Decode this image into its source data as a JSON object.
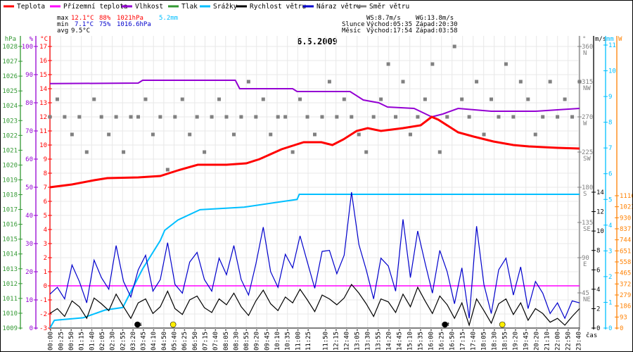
{
  "legend": [
    {
      "label": "Teplota",
      "color": "#ff0000"
    },
    {
      "label": "Přízemní teplota",
      "color": "#ff00ff"
    },
    {
      "label": "Vlhkost",
      "color": "#9400d3"
    },
    {
      "label": "Tlak",
      "color": "#339933"
    },
    {
      "label": "Srážky",
      "color": "#00bfff"
    },
    {
      "label": "Rychlost větru",
      "color": "#000000"
    },
    {
      "label": "Náraz větru",
      "color": "#0000cc"
    },
    {
      "label": "Směr větru",
      "color": "#808080"
    }
  ],
  "stats": {
    "max": {
      "label": "max",
      "temp": "12.1°C",
      "hum": "88%",
      "press": "1021hPa",
      "rain": "5.2mm"
    },
    "min": {
      "label": "min",
      "temp": "7.1°C",
      "hum": "75%",
      "press": "1016.6hPa"
    },
    "avg": {
      "label": "avg",
      "temp": "9.5°C"
    }
  },
  "wind_info": {
    "ws": "WS:8.7m/s",
    "wg": "WG:13.8m/s"
  },
  "sun": {
    "label": "Slunce",
    "rise": "Východ:05:35",
    "set": "Západ:20:30"
  },
  "moon": {
    "label": "Měsíc",
    "rise": "Východ:17:54",
    "set": "Západ:03:58"
  },
  "chart_data": {
    "type": "line",
    "title": "6.5.2009",
    "xlabel": "čas",
    "x_range_hours": [
      0,
      24
    ],
    "x_tick_labels": [
      "00:00",
      "00:25",
      "00:50",
      "01:15",
      "01:40",
      "02:05",
      "02:30",
      "02:55",
      "03:20",
      "03:45",
      "04:10",
      "04:50",
      "05:40",
      "06:25",
      "06:50",
      "07:15",
      "07:40",
      "08:05",
      "08:30",
      "08:55",
      "09:20",
      "09:45",
      "10:10",
      "10:35",
      "11:00",
      "11:25",
      "11:50",
      "12:15",
      "12:40",
      "13:05",
      "13:30",
      "13:55",
      "14:20",
      "14:45",
      "15:10",
      "15:35",
      "16:00",
      "16:25",
      "16:50",
      "17:15",
      "17:40",
      "18:05",
      "18:30",
      "18:55",
      "19:20",
      "19:45",
      "20:20",
      "21:10",
      "22:00",
      "22:50",
      "23:40"
    ],
    "axes": {
      "pressure": {
        "unit": "hPa",
        "range": [
          1009,
          1028
        ],
        "ticks": [
          "1009",
          "1010",
          "1011",
          "1012",
          "1013",
          "1014",
          "1015",
          "1016",
          "1017",
          "1018",
          "1019",
          "1020",
          "1021",
          "1022",
          "1023",
          "1024",
          "1025",
          "1026",
          "1027",
          "1028"
        ],
        "color": "#339933"
      },
      "humidity": {
        "unit": "%",
        "range": [
          0,
          100
        ],
        "ticks": [
          "0",
          "10",
          "20",
          "30",
          "40",
          "50",
          "60",
          "70",
          "80",
          "90",
          "100"
        ],
        "color": "#9400d3"
      },
      "temperature": {
        "unit": "°C",
        "range": [
          -3,
          17
        ],
        "ticks": [
          "-3",
          "-2",
          "-1",
          "0",
          "1",
          "2",
          "3",
          "4",
          "5",
          "6",
          "7",
          "8",
          "9",
          "10",
          "11",
          "12",
          "13",
          "14",
          "15",
          "16",
          "17"
        ],
        "color": "#ff0000"
      },
      "direction": {
        "unit": "°",
        "range": [
          0,
          360
        ],
        "ticks": [
          {
            "v": "45",
            "d": "NE"
          },
          {
            "v": "90",
            "d": "E"
          },
          {
            "v": "135",
            "d": "SE"
          },
          {
            "v": "180",
            "d": "S"
          },
          {
            "v": "225",
            "d": "SW"
          },
          {
            "v": "270",
            "d": "W"
          },
          {
            "v": "315",
            "d": "NW"
          },
          {
            "v": "360",
            "d": "N"
          }
        ],
        "color": "#808080"
      },
      "wind": {
        "unit": "m/s",
        "range": [
          0,
          14
        ],
        "ticks": [
          "0",
          "2",
          "4",
          "6",
          "8",
          "10",
          "12",
          "14"
        ],
        "color": "#000000"
      },
      "rain": {
        "unit": "mm",
        "range": [
          0,
          11
        ],
        "ticks": [
          "0",
          "1",
          "2",
          "3",
          "4",
          "5",
          "6",
          "7",
          "8",
          "9",
          "10",
          "11"
        ],
        "color": "#00bfff"
      },
      "radiation": {
        "unit": "W",
        "range": [
          0,
          1116
        ],
        "ticks": [
          "0",
          "93",
          "186",
          "279",
          "372",
          "465",
          "558",
          "651",
          "744",
          "837",
          "930",
          "1023",
          "1116"
        ],
        "color": "#ff8000"
      }
    },
    "series": [
      {
        "name": "Teplota",
        "axis": "temperature",
        "points": [
          [
            0,
            7.0
          ],
          [
            1,
            7.2
          ],
          [
            2,
            7.5
          ],
          [
            2.6,
            7.65
          ],
          [
            4,
            7.7
          ],
          [
            5,
            7.8
          ],
          [
            5.8,
            8.2
          ],
          [
            6.7,
            8.6
          ],
          [
            8,
            8.6
          ],
          [
            8.9,
            8.7
          ],
          [
            9.5,
            9.0
          ],
          [
            10.5,
            9.7
          ],
          [
            11.5,
            10.2
          ],
          [
            12.3,
            10.2
          ],
          [
            12.8,
            10.0
          ],
          [
            13.3,
            10.4
          ],
          [
            13.9,
            11.0
          ],
          [
            14.4,
            11.2
          ],
          [
            15,
            11.0
          ],
          [
            16,
            11.2
          ],
          [
            16.8,
            11.4
          ],
          [
            17.3,
            12.0
          ],
          [
            17.6,
            11.8
          ],
          [
            18.5,
            10.9
          ],
          [
            19.2,
            10.6
          ],
          [
            20.1,
            10.25
          ],
          [
            21,
            10.0
          ],
          [
            21.7,
            9.9
          ],
          [
            23,
            9.8
          ],
          [
            24,
            9.75
          ]
        ]
      },
      {
        "name": "Přízemní teplota",
        "axis": "temperature",
        "points": [
          [
            0,
            0
          ],
          [
            24,
            0
          ]
        ]
      },
      {
        "name": "Vlhkost",
        "axis": "humidity",
        "points": [
          [
            0,
            86.8
          ],
          [
            4,
            87
          ],
          [
            4.2,
            88
          ],
          [
            8.4,
            88
          ],
          [
            8.6,
            85
          ],
          [
            11,
            85
          ],
          [
            11.2,
            84
          ],
          [
            13.6,
            84
          ],
          [
            14.2,
            81
          ],
          [
            14.9,
            80
          ],
          [
            15.3,
            78.5
          ],
          [
            16.5,
            78
          ],
          [
            17.3,
            75
          ],
          [
            17.8,
            76
          ],
          [
            18.5,
            78
          ],
          [
            20,
            77
          ],
          [
            22,
            77
          ],
          [
            23,
            77.5
          ],
          [
            24,
            78
          ]
        ]
      },
      {
        "name": "Srážky",
        "axis": "rain",
        "points": [
          [
            0,
            0
          ],
          [
            0.2,
            0.3
          ],
          [
            1.5,
            0.4
          ],
          [
            2.5,
            0.7
          ],
          [
            3.3,
            0.8
          ],
          [
            4.2,
            2.3
          ],
          [
            5.0,
            3.4
          ],
          [
            5.2,
            3.8
          ],
          [
            5.8,
            4.2
          ],
          [
            6.8,
            4.6
          ],
          [
            8.8,
            4.7
          ],
          [
            10.4,
            4.9
          ],
          [
            11.2,
            5.0
          ],
          [
            11.3,
            5.2
          ],
          [
            24,
            5.2
          ]
        ]
      },
      {
        "name": "Rychlost větru",
        "axis": "wind",
        "step_minutes": 20,
        "values": [
          1.5,
          2.0,
          1.2,
          2.8,
          2.2,
          1.0,
          3.1,
          2.5,
          1.8,
          3.5,
          2.2,
          1.0,
          2.6,
          3.0,
          1.5,
          2.2,
          3.8,
          2.0,
          1.4,
          2.9,
          3.3,
          2.1,
          1.6,
          3.0,
          2.4,
          3.6,
          2.2,
          1.3,
          2.8,
          3.9,
          2.5,
          1.8,
          3.2,
          2.6,
          4.0,
          2.9,
          1.7,
          3.4,
          3.0,
          2.4,
          3.1,
          4.5,
          3.6,
          2.5,
          1.2,
          3.0,
          2.7,
          1.6,
          3.5,
          2.2,
          4.2,
          2.8,
          1.5,
          3.3,
          2.4,
          1.0,
          2.6,
          0.3,
          3.0,
          1.8,
          0.5,
          2.5,
          3.0,
          1.4,
          2.6,
          0.8,
          2.0,
          1.5,
          0.6,
          1.0,
          0.3,
          1.2,
          2.0
        ]
      },
      {
        "name": "Náraz větru",
        "axis": "wind",
        "step_minutes": 20,
        "values": [
          3.5,
          4.2,
          3.0,
          6.5,
          4.8,
          2.6,
          7.0,
          5.2,
          4.0,
          8.5,
          4.8,
          3.2,
          6.0,
          7.5,
          3.8,
          5.0,
          8.8,
          4.5,
          3.6,
          6.8,
          7.8,
          5.0,
          3.8,
          7.2,
          5.5,
          8.5,
          5.0,
          3.4,
          6.6,
          10.4,
          5.8,
          4.2,
          7.6,
          6.2,
          9.5,
          6.8,
          4.1,
          7.9,
          8.0,
          5.6,
          7.5,
          14.0,
          8.6,
          6.0,
          3.0,
          7.2,
          6.4,
          3.8,
          11.2,
          5.2,
          10.0,
          6.7,
          3.6,
          8.0,
          5.8,
          2.5,
          6.2,
          1.0,
          10.5,
          4.5,
          1.5,
          6.0,
          7.2,
          3.4,
          6.3,
          2.0,
          4.8,
          3.6,
          1.5,
          2.6,
          1.0,
          2.8,
          2.6
        ]
      },
      {
        "name": "Směr větru",
        "axis": "direction",
        "step_minutes": 20,
        "values": [
          270,
          292.5,
          270,
          247.5,
          270,
          225,
          292.5,
          270,
          247.5,
          270,
          225,
          270,
          270,
          292.5,
          247.5,
          270,
          202.5,
          270,
          292.5,
          247.5,
          270,
          225,
          270,
          292.5,
          270,
          247.5,
          270,
          315,
          270,
          292.5,
          247.5,
          270,
          270,
          225,
          292.5,
          270,
          247.5,
          270,
          315,
          270,
          292.5,
          270,
          247.5,
          225,
          270,
          292.5,
          337.5,
          270,
          315,
          247.5,
          270,
          292.5,
          337.5,
          225,
          270,
          360,
          292.5,
          270,
          315,
          247.5,
          292.5,
          270,
          337.5,
          270,
          315,
          292.5,
          247.5,
          270,
          315,
          270,
          292.5,
          270,
          315
        ]
      }
    ],
    "markers": [
      {
        "name": "moon-set",
        "time": "03:58",
        "color": "#000000"
      },
      {
        "name": "sunrise",
        "time": "05:35",
        "color": "#ffee00"
      },
      {
        "name": "moon-rise",
        "time": "17:54",
        "color": "#000000"
      },
      {
        "name": "sunset",
        "time": "20:30",
        "color": "#ffee00"
      }
    ],
    "grid": true,
    "legend_position": "top"
  }
}
